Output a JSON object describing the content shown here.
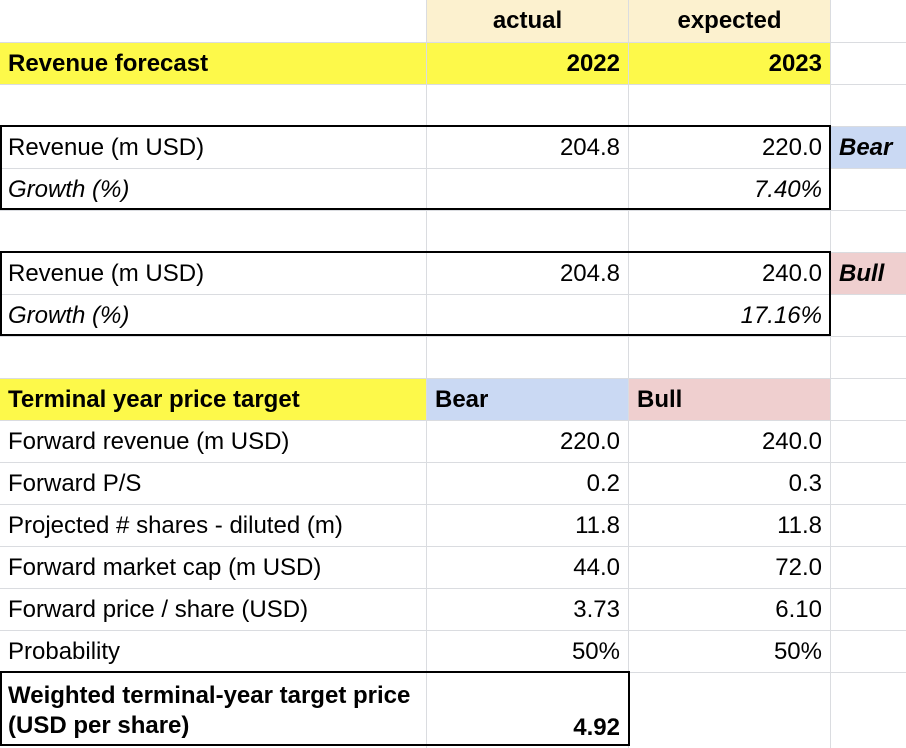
{
  "header": {
    "col_b_label": "actual",
    "col_c_label": "expected",
    "section_title": "Revenue forecast",
    "year_actual": "2022",
    "year_expected": "2023"
  },
  "bear_block": {
    "revenue_label": "Revenue (m USD)",
    "revenue_actual": "204.8",
    "revenue_expected": "220.0",
    "scenario_tag": "Bear",
    "growth_label": "Growth (%)",
    "growth_value": "7.40%"
  },
  "bull_block": {
    "revenue_label": "Revenue (m USD)",
    "revenue_actual": "204.8",
    "revenue_expected": "240.0",
    "scenario_tag": "Bull",
    "growth_label": "Growth (%)",
    "growth_value": "17.16%"
  },
  "target": {
    "title": "Terminal year price target",
    "bear_label": "Bear",
    "bull_label": "Bull",
    "rows": [
      {
        "label": "Forward revenue (m USD)",
        "bear": "220.0",
        "bull": "240.0"
      },
      {
        "label": "Forward P/S",
        "bear": "0.2",
        "bull": "0.3"
      },
      {
        "label": "Projected # shares - diluted (m)",
        "bear": "11.8",
        "bull": "11.8"
      },
      {
        "label": "Forward market cap (m USD)",
        "bear": "44.0",
        "bull": "72.0"
      },
      {
        "label": "Forward price / share (USD)",
        "bear": "3.73",
        "bull": "6.10"
      },
      {
        "label": "Probability",
        "bear": "50%",
        "bull": "50%"
      }
    ],
    "weighted_label": "Weighted terminal-year target price (USD per share)",
    "weighted_value": "4.92"
  },
  "colors": {
    "yellow": "#fdf94a",
    "cream": "#fcf1cf",
    "bear_blue": "#cad9f3",
    "bull_pink": "#efcfcf",
    "gridline": "#dadce0"
  }
}
